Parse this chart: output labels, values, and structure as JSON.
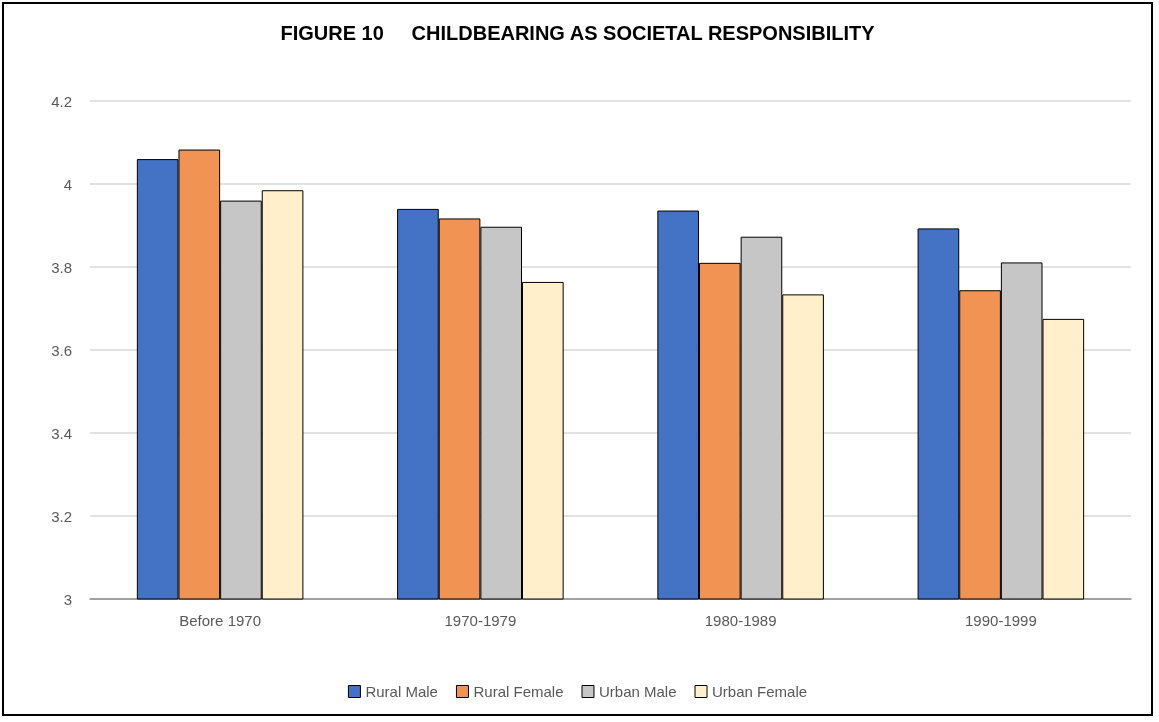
{
  "chart_data": {
    "type": "bar",
    "title": "FIGURE 10     CHILDBEARING AS SOCIETAL RESPONSIBILITY",
    "categories": [
      "Before 1970",
      "1970-1979",
      "1980-1989",
      "1990-1999"
    ],
    "series": [
      {
        "name": "Rural Male",
        "color": "#4472c4",
        "values": [
          4.06,
          3.94,
          3.936,
          3.893
        ]
      },
      {
        "name": "Rural Female",
        "color": "#f09353",
        "values": [
          4.083,
          3.917,
          3.81,
          3.744
        ]
      },
      {
        "name": "Urban Male",
        "color": "#c6c6c6",
        "values": [
          3.96,
          3.897,
          3.873,
          3.811
        ]
      },
      {
        "name": "Urban Female",
        "color": "#fff0cb",
        "values": [
          3.985,
          3.764,
          3.734,
          3.675
        ]
      }
    ],
    "ylim": [
      3,
      4.2
    ],
    "yticks": [
      3,
      3.2,
      3.4,
      3.6,
      3.8,
      4,
      4.2
    ],
    "grid": "y",
    "legend": "bottom"
  }
}
